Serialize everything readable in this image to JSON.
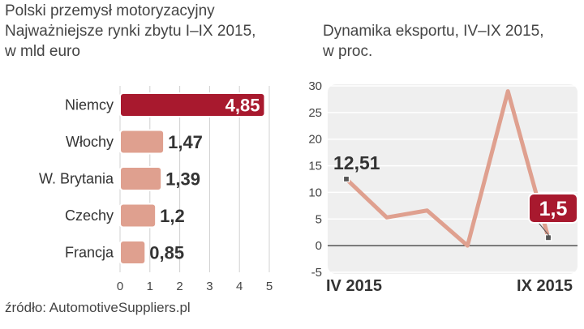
{
  "colors": {
    "highlight_bar": "#a8192e",
    "bar": "#dfa08f",
    "line": "#dfa08f",
    "panel_bg": "#efefef",
    "grid": "#ffffff",
    "zero_line": "#333333",
    "text": "#333333"
  },
  "left_chart": {
    "title_lines": [
      "Polski przemysł motoryzacyjny",
      "Najważniejsze rynki zbytu I–IX 2015,",
      "w mld euro"
    ]
  },
  "right_chart": {
    "title_lines": [
      "Dynamika eksportu, IV–IX 2015,",
      "w proc."
    ]
  },
  "source": "źródło: AutomotiveSuppliers.pl",
  "chart_data": [
    {
      "type": "bar",
      "orientation": "horizontal",
      "title": "Najważniejsze rynki zbytu I–IX 2015, w mld euro",
      "categories": [
        "Niemcy",
        "Włochy",
        "W. Brytania",
        "Czechy",
        "Francja"
      ],
      "values": [
        4.85,
        1.47,
        1.39,
        1.2,
        0.85
      ],
      "value_labels": [
        "4,85",
        "1,47",
        "1,39",
        "1,2",
        "0,85"
      ],
      "highlight_index": 0,
      "xlim": [
        0,
        5
      ],
      "x_ticks": [
        "0",
        "1",
        "2",
        "3",
        "4",
        "5"
      ]
    },
    {
      "type": "line",
      "title": "Dynamika eksportu, IV–IX 2015, w proc.",
      "x": [
        0,
        1,
        2,
        3,
        4,
        5
      ],
      "values": [
        12.51,
        5.3,
        6.6,
        0,
        29,
        1.5
      ],
      "ylim": [
        -5,
        30
      ],
      "y_ticks": [
        "-5",
        "0",
        "5",
        "10",
        "15",
        "20",
        "25",
        "30"
      ],
      "x_labels": [
        "IV 2015",
        "IX 2015"
      ],
      "annotations": [
        {
          "index": 0,
          "label": "12,51"
        },
        {
          "index": 5,
          "label": "1,5"
        }
      ]
    }
  ]
}
